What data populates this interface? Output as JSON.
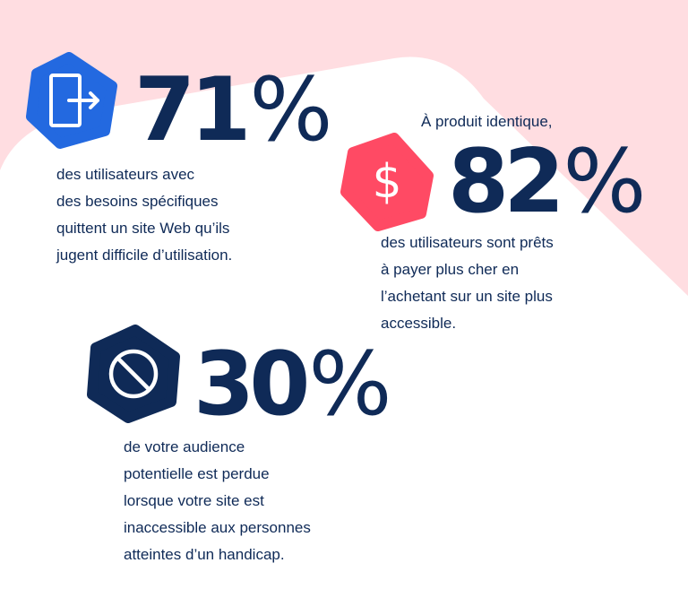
{
  "colors": {
    "background_pink": "#ffdde1",
    "navy": "#0f2a57",
    "blue": "#2369e0",
    "red": "#ff4a64"
  },
  "stats": [
    {
      "icon": "exit-door-arrow-icon",
      "value": "71",
      "unit": "%",
      "lead": "",
      "lines": [
        "des utilisateurs avec",
        "des besoins spécifiques",
        "quittent un site Web qu’ils",
        "jugent difficile d’utilisation."
      ]
    },
    {
      "icon": "dollar-icon",
      "value": "82",
      "unit": "%",
      "lead": "À produit identique,",
      "lines": [
        "des utilisateurs sont prêts",
        "à payer plus cher en",
        "l’achetant sur un site plus",
        "accessible."
      ]
    },
    {
      "icon": "prohibited-icon",
      "value": "30",
      "unit": "%",
      "lead": "",
      "lines": [
        "de votre audience",
        "potentielle est perdue",
        "lorsque votre site est",
        "inaccessible aux personnes",
        "atteintes d’un handicap."
      ]
    }
  ]
}
